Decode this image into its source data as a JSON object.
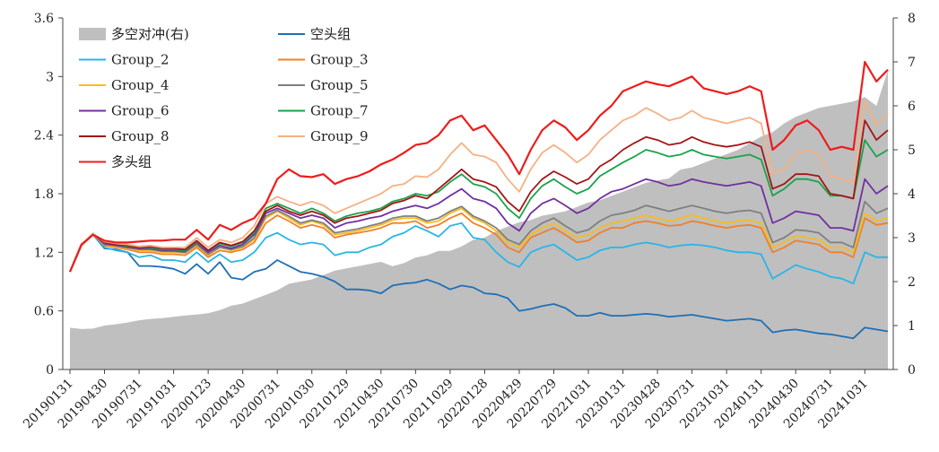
{
  "chart_data": {
    "type": "line",
    "x": [
      "20190131",
      "20190228",
      "20190329",
      "20190430",
      "20190531",
      "20190628",
      "20190731",
      "20190830",
      "20190930",
      "20191031",
      "20191129",
      "20191231",
      "20200123",
      "20200228",
      "20200331",
      "20200430",
      "20200529",
      "20200630",
      "20200731",
      "20200831",
      "20200930",
      "20201030",
      "20201130",
      "20201231",
      "20210129",
      "20210226",
      "20210331",
      "20210430",
      "20210531",
      "20210630",
      "20210730",
      "20210831",
      "20210930",
      "20211029",
      "20211130",
      "20211231",
      "20220128",
      "20220228",
      "20220331",
      "20220429",
      "20220531",
      "20220630",
      "20220729",
      "20220831",
      "20220930",
      "20221031",
      "20221130",
      "20221230",
      "20230131",
      "20230228",
      "20230331",
      "20230428",
      "20230531",
      "20230630",
      "20230731",
      "20230831",
      "20230928",
      "20231031",
      "20231130",
      "20231229",
      "20240131",
      "20240229",
      "20240329",
      "20240430",
      "20240531",
      "20240628",
      "20240731",
      "20240830",
      "20240930",
      "20241031",
      "20241129",
      "20241231"
    ],
    "x_tick_labels": [
      "20190131",
      "20190430",
      "20190731",
      "20191031",
      "20200123",
      "20200430",
      "20200731",
      "20201030",
      "20210129",
      "20210430",
      "20210730",
      "20211029",
      "20220128",
      "20220429",
      "20220729",
      "20221031",
      "20230131",
      "20230428",
      "20230731",
      "20231031",
      "20240131",
      "20240430",
      "20240731",
      "20241031"
    ],
    "ylim_left": [
      0,
      3.6
    ],
    "yticks_left": [
      "0",
      "0.6",
      "1.2",
      "1.8",
      "2.4",
      "3",
      "3.6"
    ],
    "ylim_right": [
      0,
      8
    ],
    "yticks_right": [
      "0",
      "1",
      "2",
      "3",
      "4",
      "5",
      "6",
      "7",
      "8"
    ],
    "area": {
      "name": "多空对冲(右)",
      "color": "#bfbfbf",
      "axis": "right",
      "values": [
        0.95,
        0.92,
        0.93,
        1.0,
        1.03,
        1.07,
        1.12,
        1.15,
        1.17,
        1.2,
        1.23,
        1.25,
        1.28,
        1.35,
        1.45,
        1.5,
        1.6,
        1.7,
        1.8,
        1.95,
        2.0,
        2.05,
        2.15,
        2.25,
        2.3,
        2.35,
        2.4,
        2.45,
        2.35,
        2.42,
        2.55,
        2.6,
        2.7,
        2.7,
        2.8,
        2.95,
        3.0,
        3.15,
        3.25,
        3.35,
        3.4,
        3.5,
        3.55,
        3.6,
        3.7,
        3.8,
        3.85,
        3.95,
        4.05,
        4.15,
        4.25,
        4.3,
        4.35,
        4.55,
        4.6,
        4.7,
        4.8,
        4.9,
        5.0,
        5.15,
        5.3,
        5.4,
        5.6,
        5.75,
        5.85,
        5.95,
        6.0,
        6.05,
        6.1,
        6.2,
        6.0,
        6.8
      ]
    },
    "series": [
      {
        "name": "空头组",
        "color": "#1f6fb5",
        "values": [
          1.0,
          1.27,
          1.38,
          1.24,
          1.23,
          1.2,
          1.06,
          1.06,
          1.05,
          1.03,
          0.98,
          1.08,
          0.98,
          1.1,
          0.94,
          0.92,
          1.0,
          1.03,
          1.12,
          1.06,
          1.0,
          0.98,
          0.95,
          0.9,
          0.82,
          0.82,
          0.81,
          0.78,
          0.86,
          0.88,
          0.89,
          0.92,
          0.88,
          0.82,
          0.86,
          0.84,
          0.78,
          0.77,
          0.73,
          0.6,
          0.62,
          0.65,
          0.67,
          0.63,
          0.55,
          0.55,
          0.58,
          0.55,
          0.55,
          0.56,
          0.57,
          0.56,
          0.54,
          0.55,
          0.56,
          0.54,
          0.52,
          0.5,
          0.51,
          0.52,
          0.5,
          0.38,
          0.4,
          0.41,
          0.39,
          0.37,
          0.36,
          0.34,
          0.32,
          0.43,
          0.41,
          0.39
        ]
      },
      {
        "name": "Group_2",
        "color": "#29b5e8",
        "values": [
          1.0,
          1.27,
          1.38,
          1.25,
          1.22,
          1.2,
          1.15,
          1.17,
          1.12,
          1.12,
          1.1,
          1.2,
          1.1,
          1.18,
          1.1,
          1.12,
          1.2,
          1.35,
          1.4,
          1.33,
          1.28,
          1.3,
          1.28,
          1.17,
          1.2,
          1.2,
          1.25,
          1.28,
          1.36,
          1.4,
          1.47,
          1.42,
          1.36,
          1.47,
          1.5,
          1.35,
          1.33,
          1.2,
          1.1,
          1.05,
          1.2,
          1.25,
          1.28,
          1.2,
          1.12,
          1.15,
          1.22,
          1.25,
          1.25,
          1.28,
          1.3,
          1.28,
          1.25,
          1.27,
          1.28,
          1.27,
          1.25,
          1.22,
          1.2,
          1.2,
          1.18,
          0.93,
          1.0,
          1.07,
          1.03,
          1.0,
          0.95,
          0.93,
          0.88,
          1.2,
          1.15,
          1.15
        ]
      },
      {
        "name": "Group_3",
        "color": "#f07f2a",
        "values": [
          1.0,
          1.27,
          1.38,
          1.27,
          1.25,
          1.23,
          1.2,
          1.2,
          1.18,
          1.18,
          1.17,
          1.25,
          1.15,
          1.22,
          1.2,
          1.23,
          1.3,
          1.5,
          1.58,
          1.52,
          1.45,
          1.48,
          1.45,
          1.35,
          1.38,
          1.4,
          1.42,
          1.45,
          1.5,
          1.5,
          1.52,
          1.45,
          1.48,
          1.55,
          1.6,
          1.5,
          1.45,
          1.38,
          1.25,
          1.2,
          1.35,
          1.4,
          1.45,
          1.38,
          1.3,
          1.32,
          1.4,
          1.45,
          1.45,
          1.5,
          1.52,
          1.5,
          1.47,
          1.48,
          1.52,
          1.5,
          1.47,
          1.45,
          1.47,
          1.48,
          1.45,
          1.2,
          1.25,
          1.32,
          1.3,
          1.28,
          1.2,
          1.2,
          1.15,
          1.55,
          1.48,
          1.5
        ]
      },
      {
        "name": "Group_4",
        "color": "#f5bd1f",
        "values": [
          1.0,
          1.27,
          1.39,
          1.28,
          1.26,
          1.24,
          1.22,
          1.22,
          1.2,
          1.2,
          1.19,
          1.27,
          1.17,
          1.25,
          1.22,
          1.25,
          1.33,
          1.55,
          1.62,
          1.55,
          1.48,
          1.52,
          1.48,
          1.38,
          1.4,
          1.42,
          1.45,
          1.48,
          1.53,
          1.55,
          1.55,
          1.5,
          1.52,
          1.6,
          1.65,
          1.55,
          1.5,
          1.42,
          1.3,
          1.25,
          1.38,
          1.45,
          1.5,
          1.42,
          1.35,
          1.38,
          1.45,
          1.5,
          1.52,
          1.55,
          1.58,
          1.55,
          1.52,
          1.55,
          1.58,
          1.55,
          1.52,
          1.5,
          1.52,
          1.53,
          1.5,
          1.25,
          1.3,
          1.37,
          1.35,
          1.33,
          1.25,
          1.25,
          1.2,
          1.6,
          1.52,
          1.55
        ]
      },
      {
        "name": "Group_5",
        "color": "#7f7f7f",
        "values": [
          1.0,
          1.27,
          1.39,
          1.28,
          1.27,
          1.25,
          1.23,
          1.23,
          1.21,
          1.21,
          1.2,
          1.28,
          1.18,
          1.25,
          1.23,
          1.26,
          1.35,
          1.57,
          1.63,
          1.57,
          1.5,
          1.53,
          1.5,
          1.4,
          1.42,
          1.44,
          1.47,
          1.5,
          1.55,
          1.57,
          1.57,
          1.52,
          1.55,
          1.62,
          1.67,
          1.57,
          1.52,
          1.45,
          1.33,
          1.28,
          1.42,
          1.5,
          1.55,
          1.47,
          1.4,
          1.43,
          1.52,
          1.58,
          1.6,
          1.63,
          1.68,
          1.65,
          1.62,
          1.65,
          1.68,
          1.65,
          1.62,
          1.6,
          1.62,
          1.63,
          1.6,
          1.3,
          1.35,
          1.43,
          1.42,
          1.4,
          1.3,
          1.3,
          1.25,
          1.72,
          1.6,
          1.65
        ]
      },
      {
        "name": "Group_6",
        "color": "#7030a0",
        "values": [
          1.0,
          1.27,
          1.39,
          1.29,
          1.27,
          1.25,
          1.24,
          1.24,
          1.22,
          1.22,
          1.21,
          1.3,
          1.2,
          1.27,
          1.24,
          1.28,
          1.38,
          1.6,
          1.65,
          1.6,
          1.55,
          1.58,
          1.55,
          1.45,
          1.5,
          1.52,
          1.55,
          1.57,
          1.62,
          1.65,
          1.68,
          1.65,
          1.7,
          1.78,
          1.85,
          1.75,
          1.72,
          1.65,
          1.5,
          1.42,
          1.6,
          1.7,
          1.75,
          1.68,
          1.6,
          1.65,
          1.75,
          1.82,
          1.85,
          1.9,
          1.95,
          1.92,
          1.88,
          1.9,
          1.95,
          1.92,
          1.9,
          1.88,
          1.9,
          1.92,
          1.88,
          1.5,
          1.55,
          1.62,
          1.6,
          1.58,
          1.45,
          1.45,
          1.42,
          1.95,
          1.8,
          1.88
        ]
      },
      {
        "name": "Group_7",
        "color": "#1aa34a",
        "values": [
          1.0,
          1.27,
          1.39,
          1.3,
          1.28,
          1.26,
          1.25,
          1.25,
          1.23,
          1.23,
          1.22,
          1.31,
          1.22,
          1.29,
          1.26,
          1.3,
          1.4,
          1.65,
          1.7,
          1.65,
          1.6,
          1.65,
          1.6,
          1.52,
          1.57,
          1.6,
          1.62,
          1.65,
          1.72,
          1.75,
          1.8,
          1.78,
          1.82,
          1.92,
          2.0,
          1.9,
          1.87,
          1.8,
          1.65,
          1.55,
          1.75,
          1.88,
          1.95,
          1.87,
          1.8,
          1.85,
          1.98,
          2.05,
          2.12,
          2.18,
          2.25,
          2.22,
          2.18,
          2.2,
          2.25,
          2.2,
          2.18,
          2.16,
          2.18,
          2.2,
          2.15,
          1.78,
          1.85,
          1.95,
          1.95,
          1.92,
          1.78,
          1.78,
          1.75,
          2.35,
          2.18,
          2.25
        ]
      },
      {
        "name": "Group_8",
        "color": "#a31515",
        "values": [
          1.0,
          1.27,
          1.39,
          1.3,
          1.28,
          1.27,
          1.25,
          1.26,
          1.24,
          1.24,
          1.23,
          1.32,
          1.22,
          1.3,
          1.27,
          1.31,
          1.42,
          1.62,
          1.68,
          1.62,
          1.58,
          1.62,
          1.58,
          1.5,
          1.55,
          1.57,
          1.6,
          1.63,
          1.7,
          1.73,
          1.78,
          1.75,
          1.85,
          1.95,
          2.05,
          1.95,
          1.92,
          1.87,
          1.72,
          1.62,
          1.82,
          1.95,
          2.03,
          1.97,
          1.9,
          1.95,
          2.08,
          2.15,
          2.25,
          2.32,
          2.38,
          2.35,
          2.3,
          2.32,
          2.38,
          2.33,
          2.3,
          2.28,
          2.3,
          2.33,
          2.28,
          1.85,
          1.9,
          2.0,
          2.0,
          1.98,
          1.8,
          1.78,
          1.75,
          2.55,
          2.35,
          2.45
        ]
      },
      {
        "name": "Group_9",
        "color": "#f4b183",
        "values": [
          1.0,
          1.27,
          1.39,
          1.31,
          1.29,
          1.28,
          1.26,
          1.27,
          1.25,
          1.25,
          1.25,
          1.35,
          1.25,
          1.33,
          1.3,
          1.35,
          1.47,
          1.7,
          1.77,
          1.72,
          1.68,
          1.72,
          1.68,
          1.6,
          1.65,
          1.7,
          1.75,
          1.8,
          1.88,
          1.9,
          1.98,
          1.97,
          2.05,
          2.2,
          2.32,
          2.2,
          2.18,
          2.12,
          1.95,
          1.82,
          2.05,
          2.22,
          2.3,
          2.22,
          2.12,
          2.2,
          2.35,
          2.45,
          2.55,
          2.6,
          2.68,
          2.62,
          2.55,
          2.58,
          2.65,
          2.58,
          2.55,
          2.52,
          2.55,
          2.58,
          2.52,
          2.0,
          2.05,
          2.2,
          2.25,
          2.2,
          1.98,
          1.95,
          1.92,
          2.75,
          2.5,
          2.62
        ]
      },
      {
        "name": "多头组",
        "color": "#ee1c1c",
        "values": [
          1.0,
          1.28,
          1.38,
          1.32,
          1.3,
          1.3,
          1.31,
          1.32,
          1.32,
          1.33,
          1.33,
          1.43,
          1.33,
          1.48,
          1.43,
          1.5,
          1.55,
          1.7,
          1.95,
          2.05,
          1.98,
          1.97,
          2.0,
          1.9,
          1.95,
          1.98,
          2.03,
          2.1,
          2.15,
          2.22,
          2.3,
          2.32,
          2.4,
          2.55,
          2.6,
          2.45,
          2.5,
          2.35,
          2.2,
          2.0,
          2.25,
          2.45,
          2.55,
          2.48,
          2.35,
          2.45,
          2.6,
          2.7,
          2.85,
          2.9,
          2.95,
          2.92,
          2.9,
          2.95,
          3.0,
          2.88,
          2.85,
          2.82,
          2.85,
          2.9,
          2.85,
          2.25,
          2.35,
          2.5,
          2.55,
          2.45,
          2.25,
          2.28,
          2.25,
          3.15,
          2.95,
          3.07
        ]
      }
    ],
    "legend": {
      "position": "top-left",
      "columns": 2,
      "order": [
        "多空对冲(右)",
        "空头组",
        "Group_2",
        "Group_3",
        "Group_4",
        "Group_5",
        "Group_6",
        "Group_7",
        "Group_8",
        "Group_9",
        "多头组"
      ]
    }
  }
}
